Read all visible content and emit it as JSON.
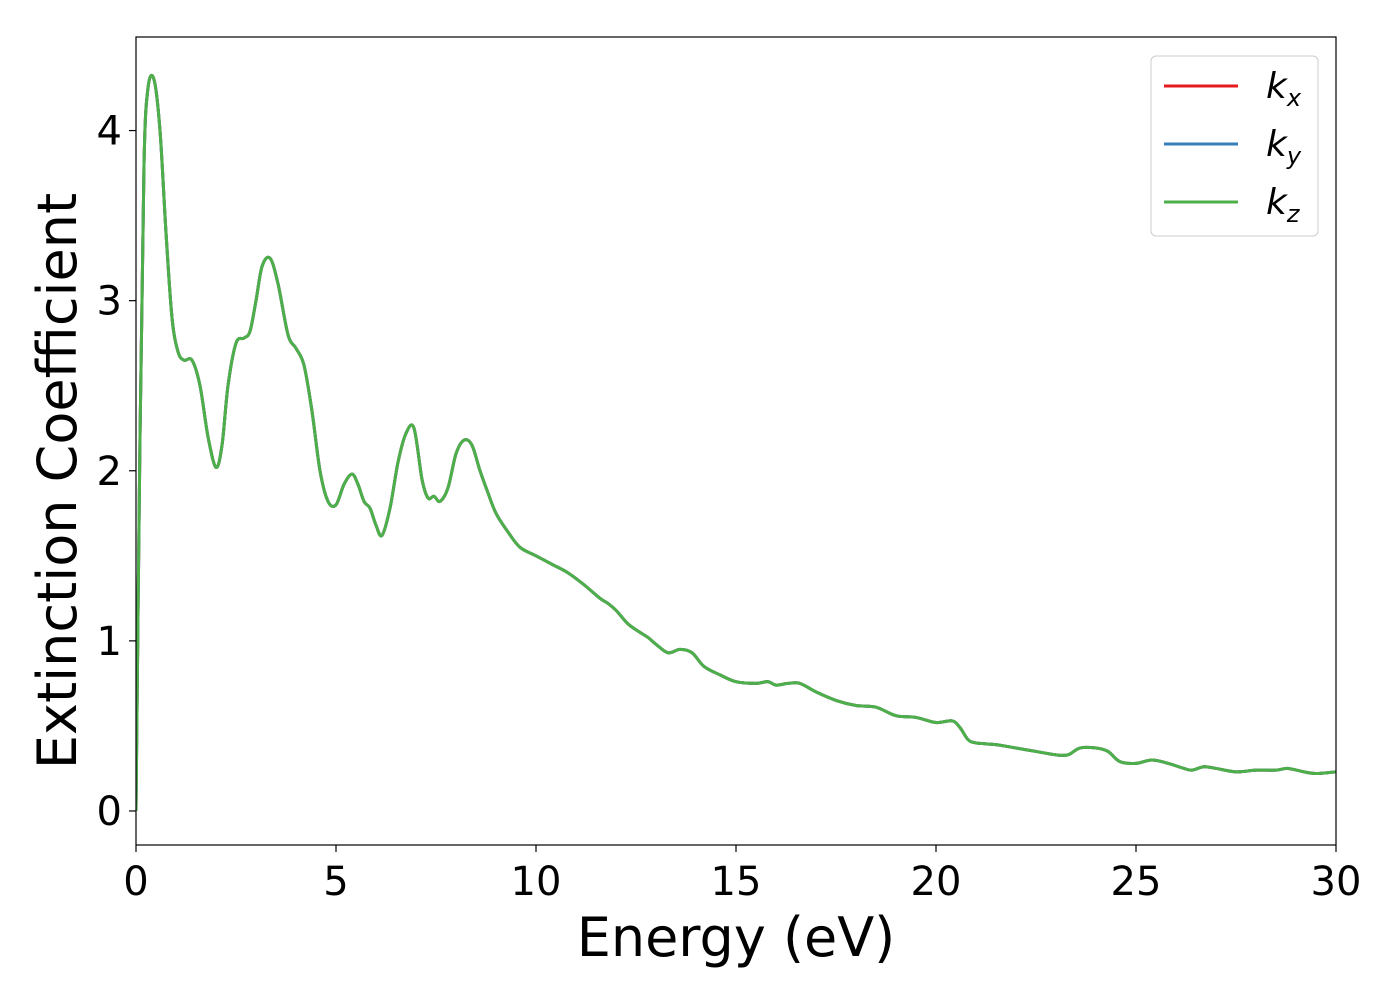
{
  "chart_data": {
    "type": "line",
    "xlabel": "Energy (eV)",
    "ylabel": "Extinction Coefficient",
    "xlim": [
      0,
      30
    ],
    "ylim": [
      -0.2,
      4.55
    ],
    "xticks": [
      "0",
      "5",
      "10",
      "15",
      "20",
      "25",
      "30"
    ],
    "yticks": [
      "0",
      "1",
      "2",
      "3",
      "4"
    ],
    "grid": false,
    "legend_position": "top-right",
    "x": [
      0.0,
      0.1,
      0.2,
      0.3,
      0.45,
      0.6,
      0.75,
      0.9,
      1.05,
      1.2,
      1.4,
      1.6,
      1.8,
      2.0,
      2.15,
      2.3,
      2.5,
      2.7,
      2.85,
      3.0,
      3.15,
      3.35,
      3.55,
      3.8,
      4.0,
      4.2,
      4.4,
      4.6,
      4.8,
      5.0,
      5.2,
      5.4,
      5.55,
      5.7,
      5.85,
      6.0,
      6.15,
      6.35,
      6.55,
      6.75,
      6.95,
      7.15,
      7.3,
      7.45,
      7.6,
      7.8,
      8.0,
      8.2,
      8.4,
      8.6,
      8.8,
      9.0,
      9.3,
      9.6,
      10.0,
      10.4,
      10.8,
      11.2,
      11.6,
      11.8,
      12.0,
      12.3,
      12.6,
      12.8,
      13.0,
      13.3,
      13.6,
      13.9,
      14.2,
      14.6,
      15.0,
      15.5,
      15.8,
      16.0,
      16.3,
      16.6,
      17.0,
      17.5,
      18.0,
      18.5,
      19.0,
      19.5,
      20.0,
      20.4,
      20.6,
      20.8,
      21.0,
      21.5,
      22.0,
      22.5,
      23.0,
      23.3,
      23.6,
      24.0,
      24.3,
      24.6,
      25.0,
      25.4,
      25.8,
      26.2,
      26.4,
      26.7,
      27.0,
      27.5,
      28.0,
      28.5,
      28.8,
      29.2,
      29.5,
      30.0
    ],
    "series": [
      {
        "name": "k_x",
        "color": "#e41a1c",
        "values": [
          0.0,
          2.2,
          3.8,
          4.25,
          4.3,
          4.0,
          3.4,
          2.9,
          2.7,
          2.65,
          2.65,
          2.5,
          2.2,
          2.02,
          2.15,
          2.5,
          2.75,
          2.78,
          2.82,
          3.0,
          3.2,
          3.25,
          3.1,
          2.8,
          2.72,
          2.62,
          2.35,
          2.0,
          1.82,
          1.8,
          1.92,
          1.98,
          1.92,
          1.82,
          1.78,
          1.68,
          1.62,
          1.78,
          2.05,
          2.22,
          2.25,
          1.95,
          1.84,
          1.85,
          1.82,
          1.9,
          2.1,
          2.18,
          2.15,
          2.0,
          1.87,
          1.75,
          1.64,
          1.55,
          1.5,
          1.45,
          1.4,
          1.33,
          1.25,
          1.22,
          1.18,
          1.1,
          1.05,
          1.02,
          0.98,
          0.93,
          0.95,
          0.93,
          0.85,
          0.8,
          0.76,
          0.75,
          0.76,
          0.74,
          0.75,
          0.75,
          0.7,
          0.65,
          0.62,
          0.61,
          0.56,
          0.55,
          0.52,
          0.53,
          0.49,
          0.42,
          0.4,
          0.39,
          0.37,
          0.35,
          0.33,
          0.33,
          0.37,
          0.37,
          0.35,
          0.29,
          0.28,
          0.3,
          0.28,
          0.25,
          0.24,
          0.26,
          0.25,
          0.23,
          0.24,
          0.24,
          0.25,
          0.23,
          0.22,
          0.23
        ]
      },
      {
        "name": "k_y",
        "color": "#377eb8",
        "values": [
          0.0,
          2.2,
          3.8,
          4.25,
          4.3,
          4.0,
          3.4,
          2.9,
          2.7,
          2.65,
          2.65,
          2.5,
          2.2,
          2.02,
          2.15,
          2.5,
          2.75,
          2.78,
          2.82,
          3.0,
          3.2,
          3.25,
          3.1,
          2.8,
          2.72,
          2.62,
          2.35,
          2.0,
          1.82,
          1.8,
          1.92,
          1.98,
          1.92,
          1.82,
          1.78,
          1.68,
          1.62,
          1.78,
          2.05,
          2.22,
          2.25,
          1.95,
          1.84,
          1.85,
          1.82,
          1.9,
          2.1,
          2.18,
          2.15,
          2.0,
          1.87,
          1.75,
          1.64,
          1.55,
          1.5,
          1.45,
          1.4,
          1.33,
          1.25,
          1.22,
          1.18,
          1.1,
          1.05,
          1.02,
          0.98,
          0.93,
          0.95,
          0.93,
          0.85,
          0.8,
          0.76,
          0.75,
          0.76,
          0.74,
          0.75,
          0.75,
          0.7,
          0.65,
          0.62,
          0.61,
          0.56,
          0.55,
          0.52,
          0.53,
          0.49,
          0.42,
          0.4,
          0.39,
          0.37,
          0.35,
          0.33,
          0.33,
          0.37,
          0.37,
          0.35,
          0.29,
          0.28,
          0.3,
          0.28,
          0.25,
          0.24,
          0.26,
          0.25,
          0.23,
          0.24,
          0.24,
          0.25,
          0.23,
          0.22,
          0.23
        ]
      },
      {
        "name": "k_z",
        "color": "#4daf4a",
        "values": [
          0.0,
          2.2,
          3.8,
          4.25,
          4.3,
          4.0,
          3.4,
          2.9,
          2.7,
          2.65,
          2.65,
          2.5,
          2.2,
          2.02,
          2.15,
          2.5,
          2.75,
          2.78,
          2.82,
          3.0,
          3.2,
          3.25,
          3.1,
          2.8,
          2.72,
          2.62,
          2.35,
          2.0,
          1.82,
          1.8,
          1.92,
          1.98,
          1.92,
          1.82,
          1.78,
          1.68,
          1.62,
          1.78,
          2.05,
          2.22,
          2.25,
          1.95,
          1.84,
          1.85,
          1.82,
          1.9,
          2.1,
          2.18,
          2.15,
          2.0,
          1.87,
          1.75,
          1.64,
          1.55,
          1.5,
          1.45,
          1.4,
          1.33,
          1.25,
          1.22,
          1.18,
          1.1,
          1.05,
          1.02,
          0.98,
          0.93,
          0.95,
          0.93,
          0.85,
          0.8,
          0.76,
          0.75,
          0.76,
          0.74,
          0.75,
          0.75,
          0.7,
          0.65,
          0.62,
          0.61,
          0.56,
          0.55,
          0.52,
          0.53,
          0.49,
          0.42,
          0.4,
          0.39,
          0.37,
          0.35,
          0.33,
          0.33,
          0.37,
          0.37,
          0.35,
          0.29,
          0.28,
          0.3,
          0.28,
          0.25,
          0.24,
          0.26,
          0.25,
          0.23,
          0.24,
          0.24,
          0.25,
          0.23,
          0.22,
          0.23
        ]
      }
    ],
    "legend": [
      {
        "base": "k",
        "sub": "x",
        "color": "#e41a1c"
      },
      {
        "base": "k",
        "sub": "y",
        "color": "#377eb8"
      },
      {
        "base": "k",
        "sub": "z",
        "color": "#4daf4a"
      }
    ]
  }
}
